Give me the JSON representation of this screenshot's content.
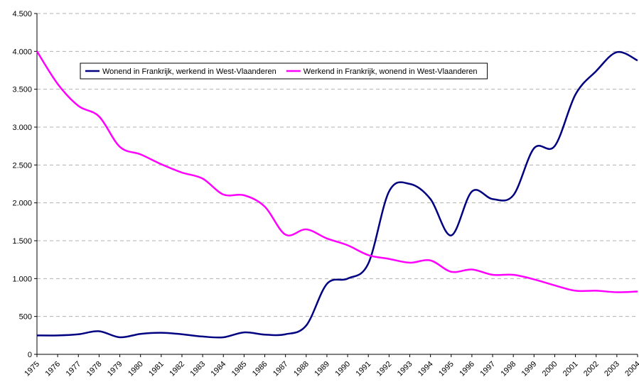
{
  "chart_data": {
    "type": "line",
    "categories": [
      "1975",
      "1976",
      "1977",
      "1978",
      "1979",
      "1980",
      "1981",
      "1982",
      "1983",
      "1984",
      "1985",
      "1986",
      "1987",
      "1988",
      "1989",
      "1990",
      "1991",
      "1992",
      "1993",
      "1994",
      "1995",
      "1996",
      "1997",
      "1998",
      "1999",
      "2000",
      "2001",
      "2002",
      "2003",
      "2004"
    ],
    "series": [
      {
        "name": "Wonend in Frankrijk, werkend in West-Vlaanderen",
        "color": "#000080",
        "values": [
          250,
          250,
          265,
          305,
          225,
          270,
          285,
          265,
          235,
          225,
          290,
          260,
          265,
          380,
          930,
          1000,
          1200,
          2150,
          2250,
          2050,
          1570,
          2150,
          2050,
          2100,
          2720,
          2750,
          3430,
          3740,
          3990,
          3880
        ]
      },
      {
        "name": "Werkend in Frankrijk, wonend in West-Vlaanderen",
        "color": "#ff00ff",
        "values": [
          4000,
          3570,
          3280,
          3140,
          2740,
          2640,
          2510,
          2400,
          2320,
          2110,
          2100,
          1950,
          1580,
          1650,
          1530,
          1440,
          1310,
          1260,
          1210,
          1240,
          1090,
          1120,
          1050,
          1050,
          990,
          910,
          840,
          840,
          820,
          830
        ]
      }
    ],
    "ylim": [
      0,
      4500
    ],
    "yticks": [
      0,
      500,
      {
        "value": 1000,
        "label": "1.000"
      },
      {
        "value": 1500,
        "label": "1.500"
      },
      {
        "value": 2000,
        "label": "2.000"
      },
      {
        "value": 2500,
        "label": "2.500"
      },
      {
        "value": 3000,
        "label": "3.000"
      },
      {
        "value": 3500,
        "label": "3.500"
      },
      {
        "value": 4000,
        "label": "4.000"
      },
      {
        "value": 4500,
        "label": "4.500"
      }
    ],
    "grid": true
  }
}
